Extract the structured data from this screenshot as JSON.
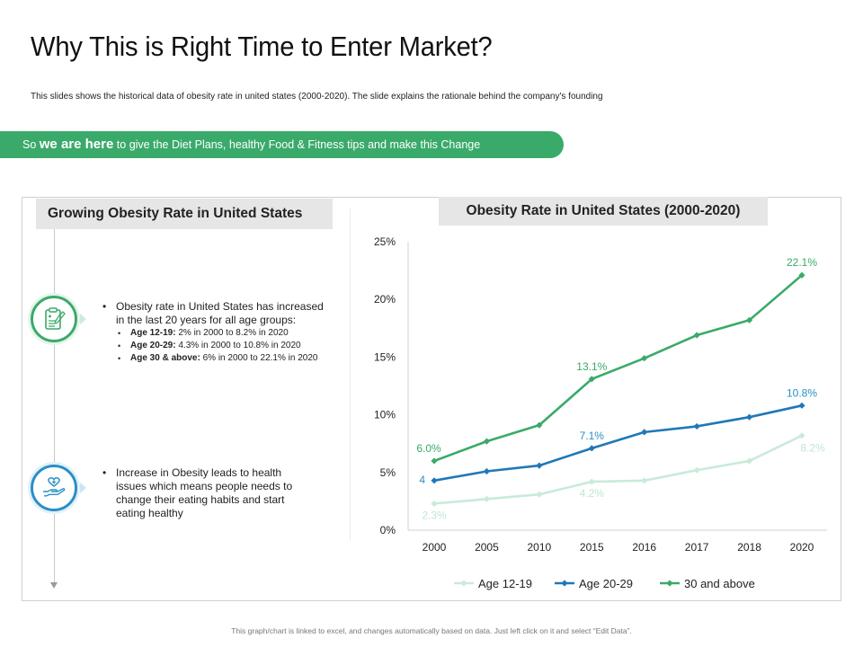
{
  "page": {
    "title": "Why This is Right Time to Enter Market?",
    "subtitle": "This slides shows the historical data of obesity rate in united states (2000-2020). The slide explains the rationale behind the company's founding",
    "banner": {
      "prefix": "So ",
      "emphasis": "we are here",
      "rest": " to give the Diet Plans, healthy Food & Fitness tips and make this Change"
    },
    "footer": "This graph/chart is linked to excel, and changes automatically based on data. Just left click on it and select “Edit Data”."
  },
  "left_panel": {
    "heading": "Growing Obesity Rate in United States",
    "points": [
      {
        "icon": "clipboard-health-icon",
        "text": "Obesity rate in United States has increased in the last 20 years for all age groups:",
        "sub_items": [
          {
            "label": "Age 12-19:",
            "text": " 2% in 2000 to 8.2% in 2020"
          },
          {
            "label": "Age 20-29:",
            "text": " 4.3% in 2000 to 10.8% in 2020"
          },
          {
            "label": "Age 30 & above:",
            "text": " 6% in 2000 to 22.1% in 2020"
          }
        ]
      },
      {
        "icon": "hand-heart-icon",
        "text": "Increase in Obesity leads to health issues which means people needs to change their eating habits and start eating healthy"
      }
    ]
  },
  "colors": {
    "green": "#3aaa6a",
    "blue": "#1f78b8",
    "light_green": "#c9ebd9",
    "label_blue": "#2a8fc7",
    "label_light": "#bfe6d3"
  },
  "chart_data": {
    "type": "line",
    "title": "Obesity Rate in United States (2000-2020)",
    "categories": [
      "2000",
      "2005",
      "2010",
      "2015",
      "2016",
      "2017",
      "2018",
      "2020"
    ],
    "ylim": [
      0,
      25
    ],
    "yticks": [
      "0%",
      "5%",
      "10%",
      "15%",
      "20%",
      "25%"
    ],
    "xlabel": "",
    "ylabel": "",
    "grid": false,
    "legend": "bottom",
    "series": [
      {
        "name": "Age 12-19",
        "color": "#c9ebd9",
        "values": [
          2.3,
          2.7,
          3.1,
          4.2,
          4.3,
          5.2,
          6.0,
          8.2
        ],
        "labels": [
          {
            "index": 0,
            "text": "2.3%"
          },
          {
            "index": 3,
            "text": "4.2%"
          },
          {
            "index": 7,
            "text": "8.2%"
          }
        ]
      },
      {
        "name": "Age 20-29",
        "color": "#1f78b8",
        "values": [
          4.3,
          5.1,
          5.6,
          7.1,
          8.5,
          9.0,
          9.8,
          10.8
        ],
        "labels": [
          {
            "index": 0,
            "text": "4"
          },
          {
            "index": 3,
            "text": "7.1%"
          },
          {
            "index": 7,
            "text": "10.8%"
          }
        ]
      },
      {
        "name": "30 and above",
        "color": "#3aaa6a",
        "values": [
          6.0,
          7.7,
          9.1,
          13.1,
          14.9,
          16.9,
          18.2,
          22.1
        ],
        "labels": [
          {
            "index": 0,
            "text": "6.0%"
          },
          {
            "index": 3,
            "text": "13.1%"
          },
          {
            "index": 7,
            "text": "22.1%"
          }
        ]
      }
    ]
  }
}
